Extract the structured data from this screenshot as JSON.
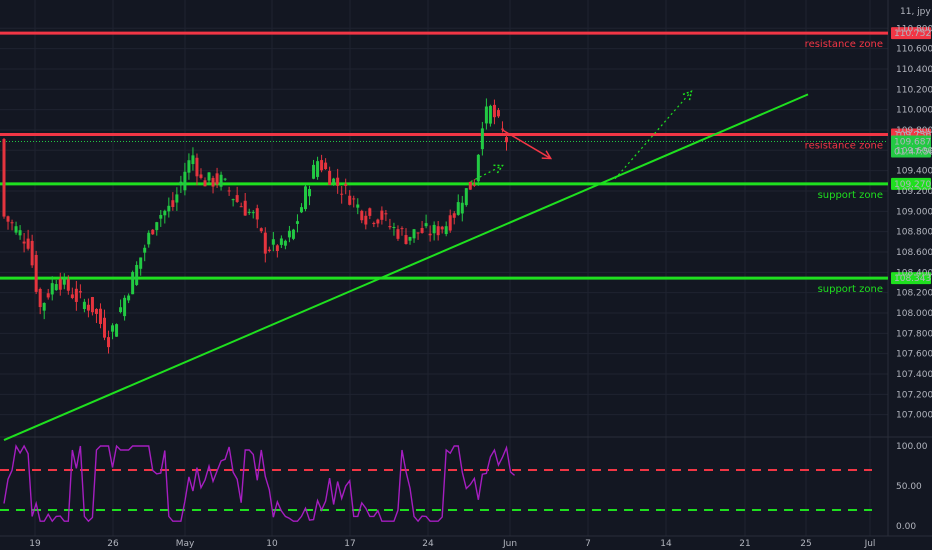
{
  "symbol_label": "11, jpy",
  "colors": {
    "background": "#131722",
    "up": "#22c943",
    "down": "#e5343e",
    "resistance": "#f23645",
    "support": "#1fe01f",
    "oscillator": "#a51ec0",
    "text": "#b2b5be"
  },
  "chart_data": {
    "type": "candlestick",
    "price_axis": {
      "range": [
        106.8,
        110.98
      ],
      "ticks": [
        "110.800",
        "110.600",
        "110.400",
        "110.200",
        "110.000",
        "109.800",
        "109.600",
        "109.400",
        "109.200",
        "109.000",
        "108.800",
        "108.600",
        "108.400",
        "108.200",
        "108.000",
        "107.800",
        "107.600",
        "107.400",
        "107.200",
        "107.000"
      ]
    },
    "time_axis": {
      "labels": [
        "19",
        "26",
        "May",
        "10",
        "17",
        "24",
        "Jun",
        "7",
        "14",
        "21",
        "25",
        "Jul"
      ]
    },
    "levels": [
      {
        "price": 110.752,
        "tag": "110.752",
        "label": "resistance zone",
        "kind": "resistance"
      },
      {
        "price": 109.756,
        "tag": "109.756",
        "label": "resistance zone",
        "kind": "resistance"
      },
      {
        "price": 109.27,
        "tag": "109.270",
        "label": "support zone",
        "kind": "support"
      },
      {
        "price": 108.343,
        "tag": "108.343",
        "label": "support zone",
        "kind": "support"
      }
    ],
    "last_price": {
      "price": 109.687,
      "tag": "109.687",
      "countdown": "01:47:56"
    },
    "trendline": {
      "from": {
        "bar": 0,
        "price": 106.75
      },
      "to": {
        "bar": 200,
        "price": 110.15
      }
    },
    "projections": [
      {
        "kind": "resistance",
        "style": "solid",
        "from": {
          "bar": 124,
          "price": 109.8
        },
        "to": {
          "bar": 136,
          "price": 109.52
        }
      },
      {
        "kind": "support",
        "style": "dotted",
        "from": {
          "bar": 115,
          "price": 109.27
        },
        "to": {
          "bar": 124,
          "price": 109.45
        }
      },
      {
        "kind": "support",
        "style": "dotted",
        "from": {
          "bar": 152,
          "price": 109.32
        },
        "to": {
          "bar": 171,
          "price": 110.18
        }
      }
    ],
    "oscillator": {
      "range": [
        0,
        100
      ],
      "ticks": [
        "100.00",
        "50.00",
        "0.00"
      ],
      "upper_level": 70,
      "lower_level": 20
    }
  }
}
